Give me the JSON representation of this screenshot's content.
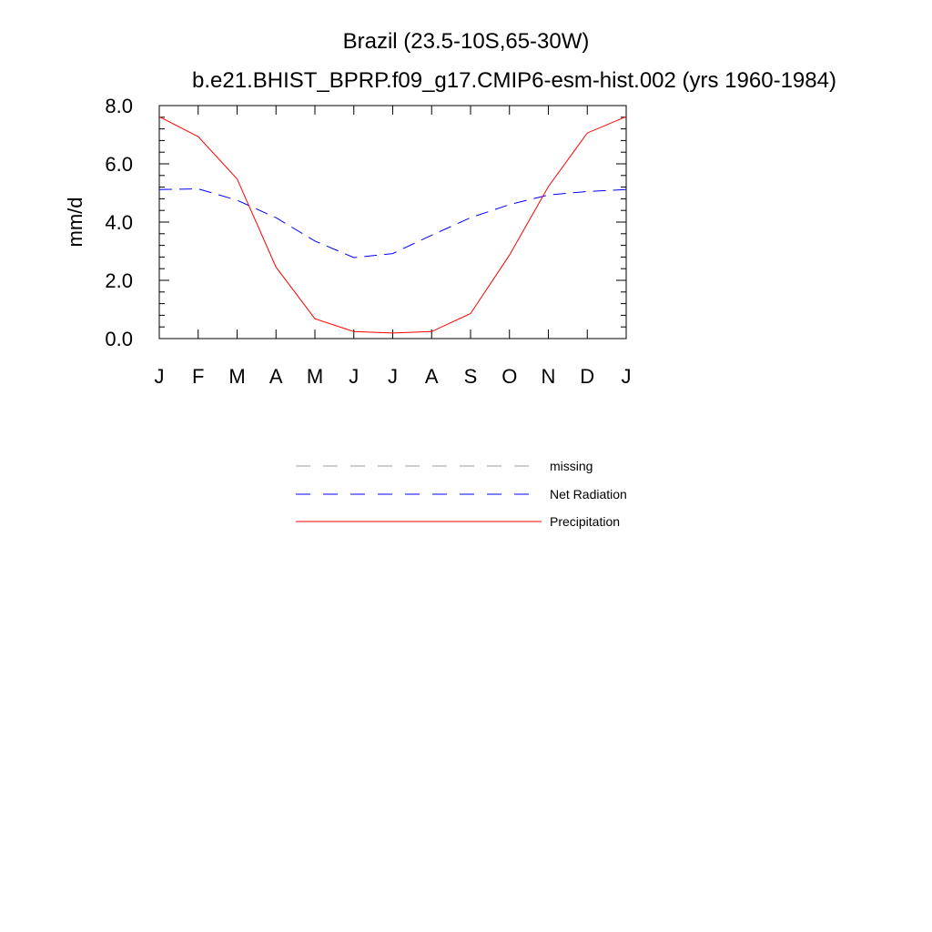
{
  "chart_data": {
    "type": "line",
    "title": "Brazil (23.5-10S,65-30W)",
    "subtitle": "b.e21.BHIST_BPRP.f09_g17.CMIP6-esm-hist.002 (yrs 1960-1984)",
    "xlabel": "",
    "ylabel": "mm/d",
    "categories": [
      "J",
      "F",
      "M",
      "A",
      "M",
      "J",
      "J",
      "A",
      "S",
      "O",
      "N",
      "D",
      "J"
    ],
    "ylim": [
      0,
      8
    ],
    "yticks": [
      "0.0",
      "2.0",
      "4.0",
      "6.0",
      "8.0"
    ],
    "grid": false,
    "legend_position": "bottom",
    "series": [
      {
        "name": "Net Radiation",
        "color": "#0000ff",
        "style": "dashed",
        "values": [
          5.12,
          5.14,
          4.75,
          4.15,
          3.35,
          2.78,
          2.92,
          3.55,
          4.15,
          4.6,
          4.93,
          5.05,
          5.12
        ]
      },
      {
        "name": "Precipitation",
        "color": "#ff0000",
        "style": "solid",
        "values": [
          7.62,
          6.93,
          5.48,
          2.45,
          0.68,
          0.24,
          0.19,
          0.24,
          0.86,
          2.87,
          5.22,
          7.06,
          7.62
        ]
      }
    ],
    "legend": [
      {
        "label": "missing",
        "color": "#999999",
        "style": "dashed"
      },
      {
        "label": "Net Radiation",
        "color": "#0000ff",
        "style": "dashed"
      },
      {
        "label": "Precipitation",
        "color": "#ff0000",
        "style": "solid"
      }
    ]
  }
}
